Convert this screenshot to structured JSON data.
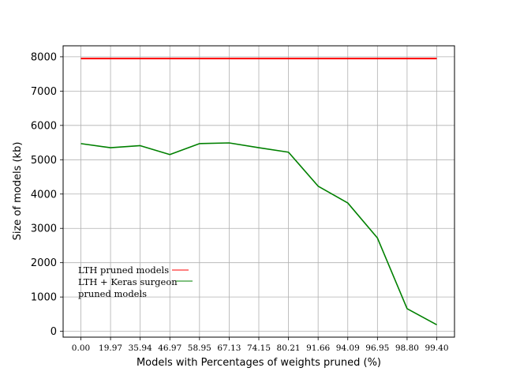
{
  "chart_data": {
    "type": "line",
    "xlabel": "Models with Percentages of weights pruned (%)",
    "ylabel": "Size of models (kb)",
    "categories": [
      "0.00",
      "19.97",
      "35.94",
      "46.97",
      "58.95",
      "67.13",
      "74.15",
      "80.21",
      "91.66",
      "94.09",
      "96.95",
      "98.80",
      "99.40"
    ],
    "ylim": [
      -170,
      8320
    ],
    "yticks": [
      0,
      1000,
      2000,
      3000,
      4000,
      5000,
      6000,
      7000,
      8000
    ],
    "grid": true,
    "legend_position": "lower-left",
    "series": [
      {
        "name": "LTH pruned models",
        "color": "#ff0000",
        "values": [
          7950,
          7950,
          7950,
          7950,
          7950,
          7950,
          7950,
          7950,
          7950,
          7950,
          7950,
          7950,
          7950
        ]
      },
      {
        "name": "LTH + Keras surgeon pruned models",
        "name_lines": [
          "LTH + Keras surgeon",
          "pruned models"
        ],
        "color": "#008000",
        "values": [
          5470,
          5350,
          5410,
          5150,
          5470,
          5490,
          5350,
          5220,
          4230,
          3740,
          2720,
          660,
          190
        ]
      }
    ]
  }
}
